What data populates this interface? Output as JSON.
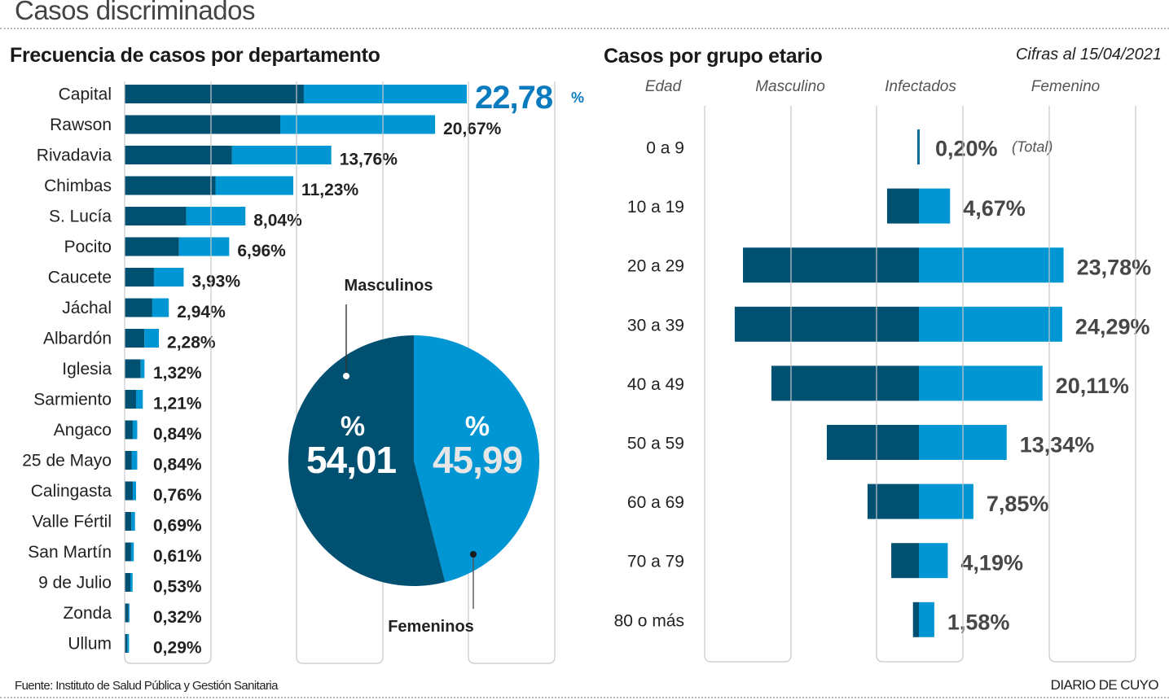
{
  "page": {
    "title": "Casos discriminados",
    "source": "Fuente: Instituto de Salud Pública y Gestión Sanitaria",
    "brand": "DIARIO DE CUYO",
    "date_note": "Cifras al 15/04/2021"
  },
  "colors": {
    "male": "#005072",
    "female": "#0095d3",
    "highlight_text": "#0a7bbf",
    "grid": "#c8c8c8",
    "label_dark": "#222222",
    "label_gray": "#474747"
  },
  "chart_data": [
    {
      "type": "bar",
      "orientation": "horizontal-stacked",
      "title": "Frecuencia de casos por departamento",
      "xlabel": "",
      "ylabel": "",
      "unit": "%",
      "grid": true,
      "categories": [
        "Capital",
        "Rawson",
        "Rivadavia",
        "Chimbas",
        "S. Lucía",
        "Pocito",
        "Caucete",
        "Jáchal",
        "Albardón",
        "Iglesia",
        "Sarmiento",
        "Angaco",
        "25 de Mayo",
        "Calingasta",
        "Valle Fértil",
        "San Martín",
        "9 de Julio",
        "Zonda",
        "Ullum"
      ],
      "values": [
        22.78,
        20.67,
        13.76,
        11.23,
        8.04,
        6.96,
        3.93,
        2.94,
        2.28,
        1.32,
        1.21,
        0.84,
        0.84,
        0.76,
        0.69,
        0.61,
        0.53,
        0.32,
        0.29
      ],
      "labels": [
        "22,78",
        "20,67%",
        "13,76%",
        "11,23%",
        "8,04%",
        "6,96%",
        "3,93%",
        "2,94%",
        "2,28%",
        "1,32%",
        "1,21%",
        "0,84%",
        "0,84%",
        "0,76%",
        "0,69%",
        "0,61%",
        "0,53%",
        "0,32%",
        "0,29%"
      ],
      "highlight_suffix": "%",
      "series": [
        {
          "name": "Masculino",
          "values": [
            11.93,
            10.36,
            7.15,
            6.05,
            4.1,
            3.62,
            1.95,
            1.84,
            1.31,
            1.07,
            0.76,
            0.54,
            0.48,
            0.54,
            0.45,
            0.43,
            0.38,
            0.26,
            0.18
          ]
        },
        {
          "name": "Femenino",
          "values": [
            10.85,
            10.31,
            6.61,
            5.18,
            3.94,
            3.34,
            1.98,
            1.1,
            0.97,
            0.25,
            0.45,
            0.3,
            0.36,
            0.22,
            0.24,
            0.18,
            0.15,
            0.06,
            0.11
          ]
        }
      ],
      "xlim": [
        0,
        28.7
      ]
    },
    {
      "type": "pie",
      "title": "",
      "slices": [
        {
          "name": "Masculinos",
          "value": 54.01,
          "label": "54,01",
          "symbol": "%"
        },
        {
          "name": "Femeninos",
          "value": 45.99,
          "label": "45,99",
          "symbol": "%"
        }
      ]
    },
    {
      "type": "bar",
      "orientation": "horizontal-diverging",
      "title": "Casos por grupo etario",
      "column_headers": [
        "Edad",
        "Masculino",
        "Infectados",
        "Femenino"
      ],
      "unit": "%",
      "grid": true,
      "categories": [
        "0 a 9",
        "10 a 19",
        "20 a 29",
        "30 a 39",
        "40 a 49",
        "50 a 59",
        "60 a 69",
        "70 a 79",
        "80 o más"
      ],
      "values": [
        0.2,
        4.67,
        23.78,
        24.29,
        20.11,
        13.34,
        7.85,
        4.19,
        1.58
      ],
      "labels": [
        "0,20%",
        "4,67%",
        "23,78%",
        "24,29%",
        "20,11%",
        "13,34%",
        "7,85%",
        "4,19%",
        "1,58%"
      ],
      "first_note": "(Total)",
      "series": [
        {
          "name": "Masculino",
          "values": [
            0.1,
            2.36,
            13.05,
            13.66,
            10.94,
            6.83,
            3.81,
            2.05,
            0.44
          ]
        },
        {
          "name": "Femenino",
          "values": [
            0.1,
            2.31,
            10.73,
            10.63,
            9.17,
            6.51,
            4.04,
            2.14,
            1.14
          ]
        }
      ]
    }
  ]
}
